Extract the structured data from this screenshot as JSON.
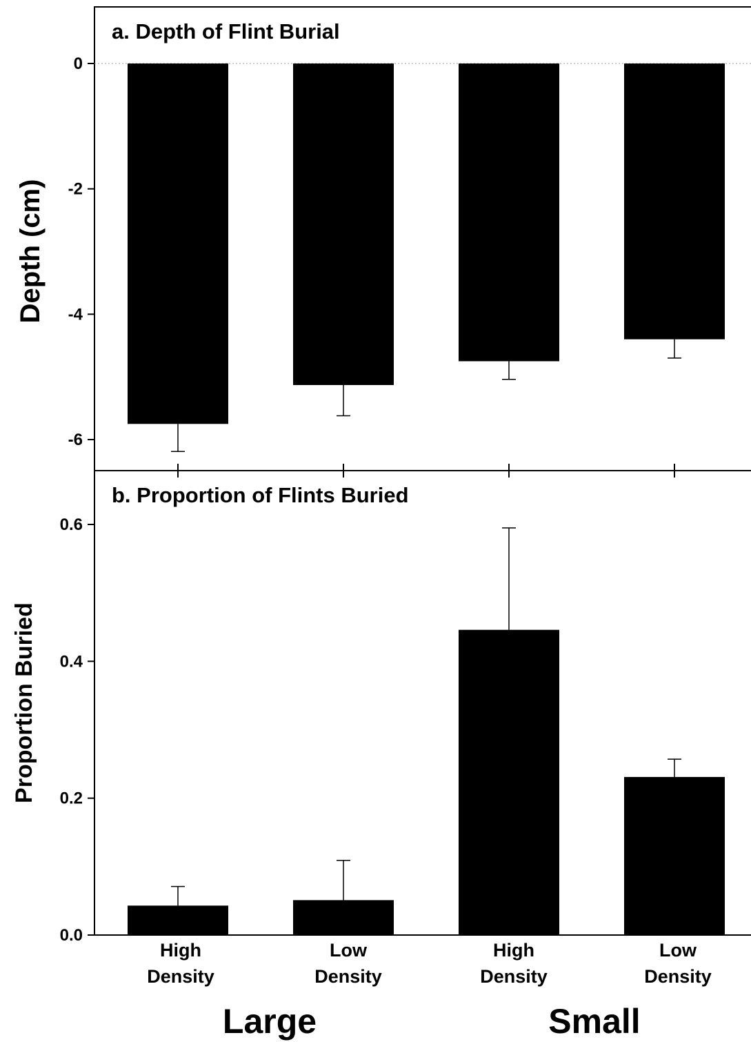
{
  "chart_data": [
    {
      "type": "bar",
      "title": "a. Depth of Flint Burial",
      "ylabel": "Depth (cm)",
      "ylim": [
        -6.5,
        0.9
      ],
      "yticks": [
        0,
        -2,
        -4,
        -6
      ],
      "categories": [
        "High Density",
        "Low Density",
        "High Density",
        "Low Density"
      ],
      "values": [
        -5.75,
        -5.13,
        -4.75,
        -4.4
      ],
      "error": [
        0.44,
        0.49,
        0.29,
        0.3
      ],
      "zero_line": "dotted",
      "color": "#000000"
    },
    {
      "type": "bar",
      "title": "b. Proportion of Flints Buried",
      "ylabel": "Proportion Buried",
      "ylim": [
        0,
        0.66
      ],
      "yticks": [
        0.0,
        0.2,
        0.4,
        0.6
      ],
      "ytick_labels": [
        "0.0",
        "0.2",
        "0.4",
        "0.6"
      ],
      "categories": [
        "High Density",
        "Low Density",
        "High Density",
        "Low Density"
      ],
      "values": [
        0.043,
        0.051,
        0.446,
        0.231
      ],
      "error": [
        0.028,
        0.058,
        0.149,
        0.026
      ],
      "color": "#000000"
    }
  ],
  "x_axis": {
    "category_lines": [
      [
        "High",
        "Density"
      ],
      [
        "Low",
        "Density"
      ],
      [
        "High",
        "Density"
      ],
      [
        "Low",
        "Density"
      ]
    ],
    "groups": [
      {
        "label": "Large",
        "span": [
          0,
          1
        ]
      },
      {
        "label": "Small",
        "span": [
          2,
          3
        ]
      }
    ]
  }
}
